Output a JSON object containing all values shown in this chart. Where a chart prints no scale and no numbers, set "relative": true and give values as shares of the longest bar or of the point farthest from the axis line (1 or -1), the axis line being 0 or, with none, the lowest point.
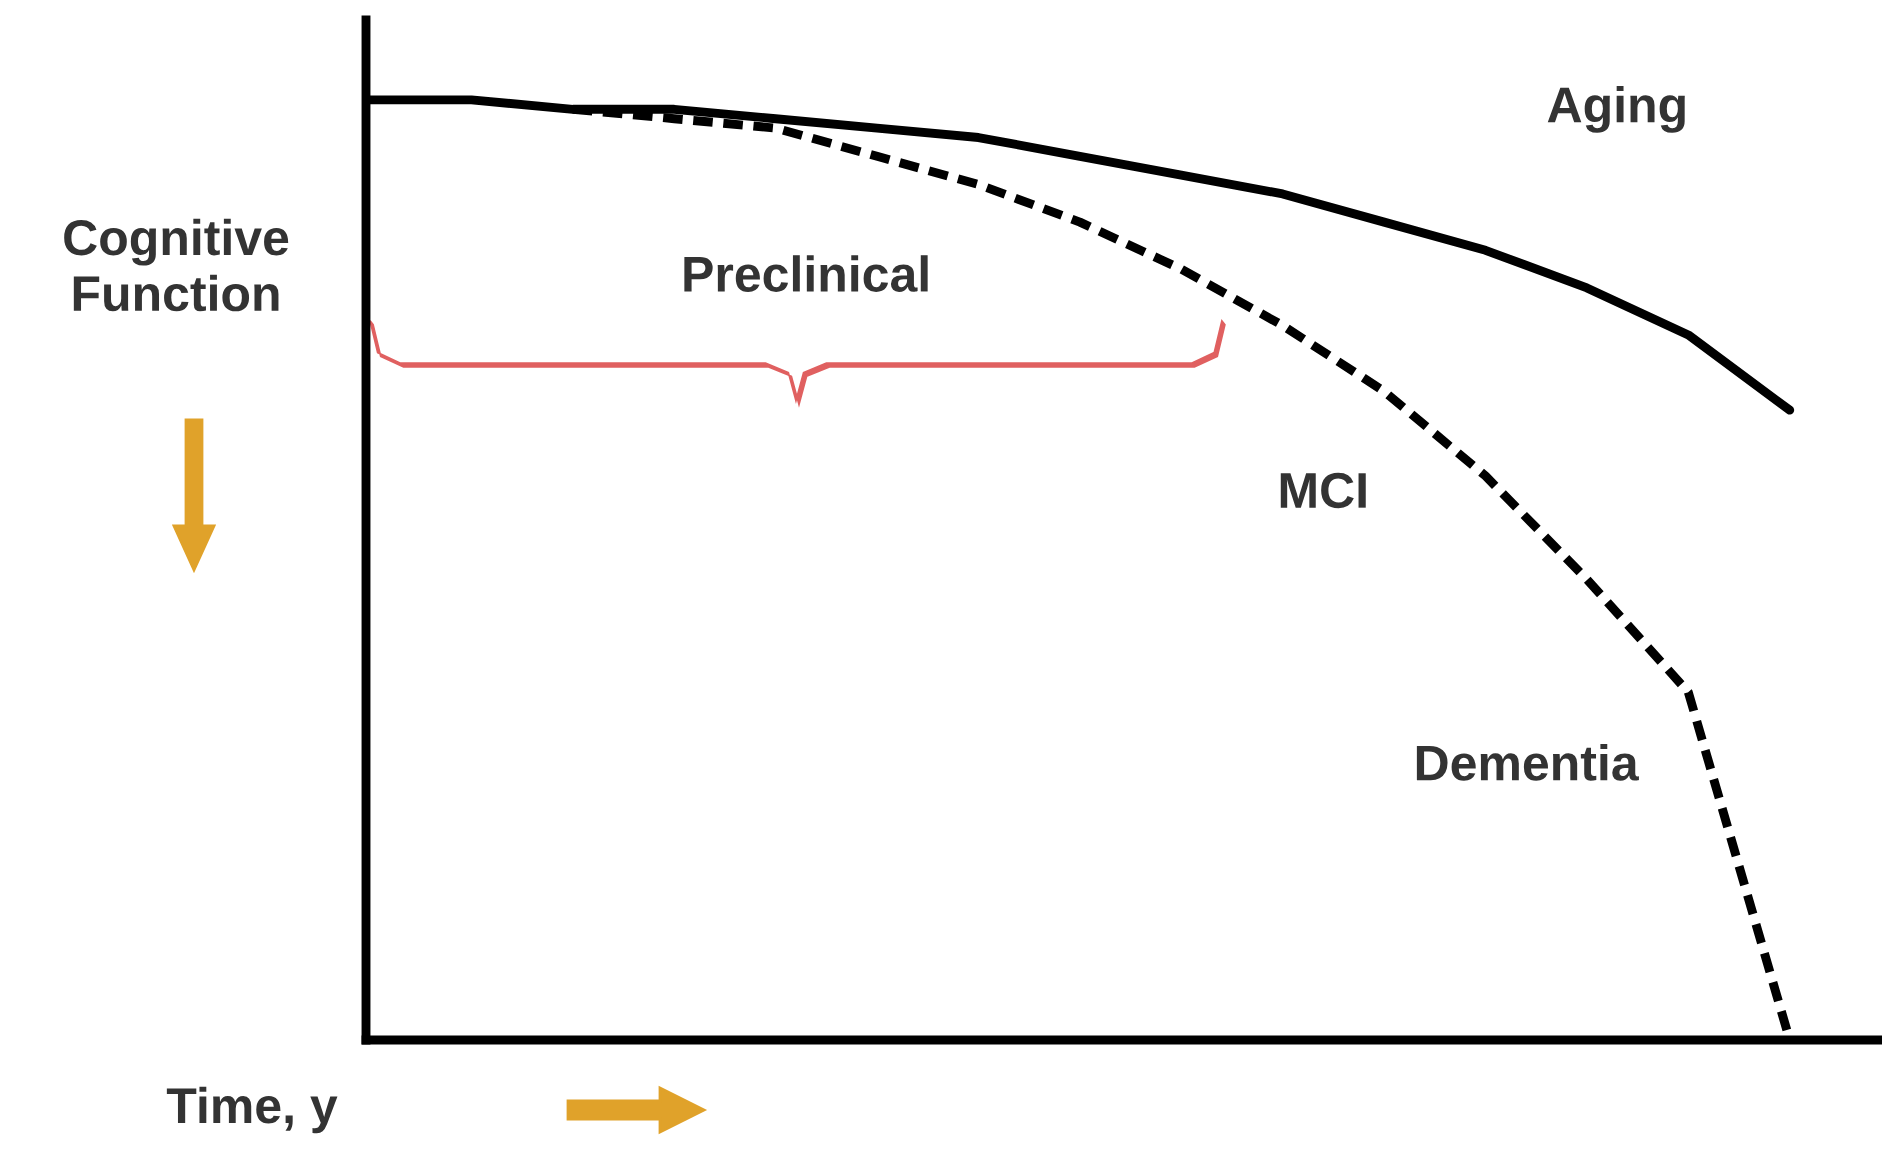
{
  "chart_data": {
    "type": "line",
    "relative": true,
    "xlabel": "Time, y",
    "ylabel": "Cognitive Function",
    "categories": [
      null,
      null,
      null,
      null,
      null,
      null,
      null,
      null,
      null,
      null,
      null,
      null,
      null,
      null,
      null
    ],
    "series": [
      {
        "color": "#000000",
        "line_style": "solid",
        "values": [
          1,
          1.0,
          0.99,
          0.99,
          0.98,
          0.97,
          0.96,
          0.94,
          0.92,
          0.9,
          0.87,
          0.84,
          0.8,
          0.75,
          0.67
        ]
      },
      {
        "color": "#000000",
        "line_style": "dashed",
        "values": [
          null,
          null,
          0.99,
          0.98,
          0.97,
          0.94,
          0.91,
          0.87,
          0.82,
          0.76,
          0.69,
          0.6,
          0.49,
          0.37,
          0
        ]
      }
    ],
    "annotations": [
      "Aging",
      "Preclinical",
      "MCI",
      "Dementia"
    ],
    "marker": "none"
  }
}
